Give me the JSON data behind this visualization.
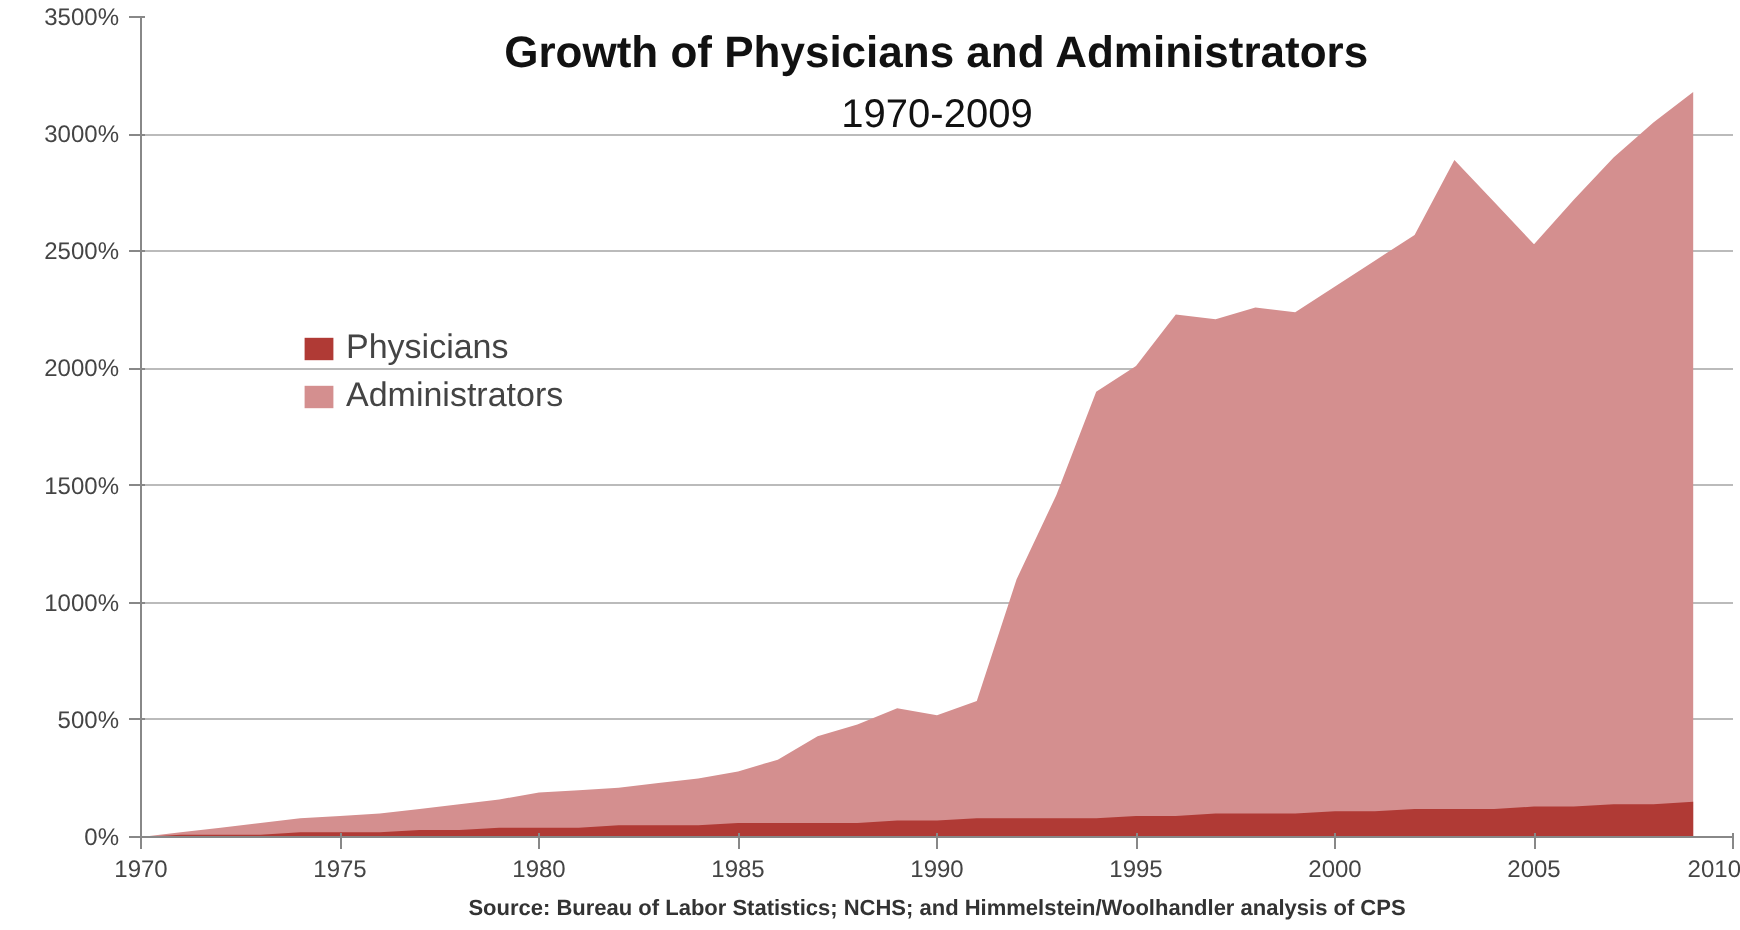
{
  "chart_data": {
    "type": "area",
    "title": "Growth of Physicians and Administrators",
    "subtitle": "1970-2009",
    "x": [
      1970,
      1971,
      1972,
      1973,
      1974,
      1975,
      1976,
      1977,
      1978,
      1979,
      1980,
      1981,
      1982,
      1983,
      1984,
      1985,
      1986,
      1987,
      1988,
      1989,
      1990,
      1991,
      1992,
      1993,
      1994,
      1995,
      1996,
      1997,
      1998,
      1999,
      2000,
      2001,
      2002,
      2003,
      2004,
      2005,
      2006,
      2007,
      2008,
      2009
    ],
    "series": [
      {
        "name": "Physicians",
        "color": "#b03a35",
        "values": [
          0,
          10,
          10,
          10,
          20,
          20,
          20,
          30,
          30,
          40,
          40,
          40,
          50,
          50,
          50,
          60,
          60,
          60,
          60,
          70,
          70,
          80,
          80,
          80,
          80,
          90,
          90,
          100,
          100,
          100,
          110,
          110,
          120,
          120,
          120,
          130,
          130,
          140,
          140,
          150
        ]
      },
      {
        "name": "Administrators",
        "color": "#d48f8f",
        "values": [
          0,
          20,
          40,
          60,
          80,
          90,
          100,
          120,
          140,
          160,
          190,
          200,
          210,
          230,
          250,
          280,
          330,
          430,
          480,
          550,
          520,
          580,
          1100,
          1460,
          1900,
          2010,
          2230,
          2210,
          2260,
          2240,
          2350,
          2460,
          2570,
          2890,
          2710,
          2530,
          2720,
          2900,
          3050,
          3180
        ]
      }
    ],
    "xlim": [
      1970,
      2010
    ],
    "xticks": [
      1970,
      1975,
      1980,
      1985,
      1990,
      1995,
      2000,
      2005,
      2010
    ],
    "ylim": [
      0,
      3500
    ],
    "yticks": [
      {
        "value": 0,
        "label": "0%"
      },
      {
        "value": 500,
        "label": "500%"
      },
      {
        "value": 1000,
        "label": "1000%"
      },
      {
        "value": 1500,
        "label": "1500%"
      },
      {
        "value": 2000,
        "label": "2000%"
      },
      {
        "value": 2500,
        "label": "2500%"
      },
      {
        "value": 3000,
        "label": "3000%"
      },
      {
        "value": 3500,
        "label": "3500%"
      }
    ],
    "grid": "y",
    "legend": "left",
    "annotations": [
      "Source: Bureau of Labor Statistics; NCHS; and Himmelstein/Woolhandler analysis of CPS"
    ]
  }
}
